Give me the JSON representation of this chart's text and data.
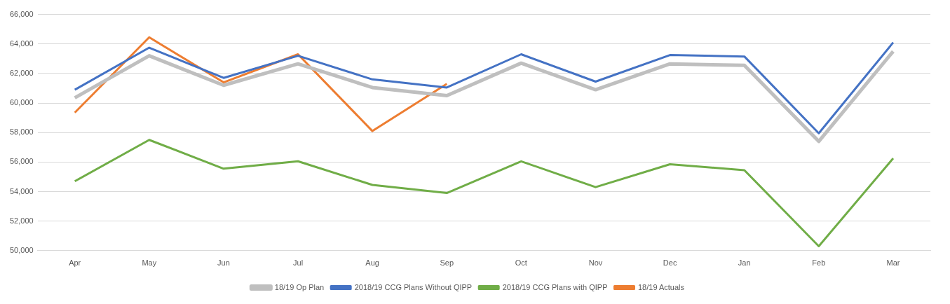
{
  "chart_data": {
    "type": "line",
    "categories": [
      "Apr",
      "May",
      "Jun",
      "Jul",
      "Aug",
      "Sep",
      "Oct",
      "Nov",
      "Dec",
      "Jan",
      "Feb",
      "Mar"
    ],
    "series": [
      {
        "name": "18/19 Op Plan",
        "color": "#bfbfbf",
        "values": [
          60350,
          63200,
          61200,
          62650,
          61050,
          60500,
          62700,
          60900,
          62650,
          62550,
          57400,
          63500
        ]
      },
      {
        "name": "2018/19 CCG Plans Without QIPP",
        "color": "#4472c4",
        "values": [
          60900,
          63750,
          61700,
          63200,
          61600,
          61050,
          63300,
          61450,
          63250,
          63150,
          57950,
          64100
        ]
      },
      {
        "name": "2018/19 CCG Plans with QIPP",
        "color": "#70ad47",
        "values": [
          54700,
          57500,
          55550,
          56050,
          54450,
          53900,
          56050,
          54300,
          55850,
          55450,
          50300,
          56250
        ]
      },
      {
        "name": "18/19 Actuals",
        "color": "#ed7d31",
        "values": [
          59350,
          64450,
          61400,
          63300,
          58100,
          61300,
          null,
          null,
          null,
          null,
          null,
          null
        ]
      }
    ],
    "ylim": [
      50000,
      66000
    ],
    "yticks": [
      {
        "value": 50000,
        "label": "50,000"
      },
      {
        "value": 52000,
        "label": "52,000"
      },
      {
        "value": 54000,
        "label": "54,000"
      },
      {
        "value": 56000,
        "label": "56,000"
      },
      {
        "value": 58000,
        "label": "58,000"
      },
      {
        "value": 60000,
        "label": "60,000"
      },
      {
        "value": 62000,
        "label": "62,000"
      },
      {
        "value": 64000,
        "label": "64,000"
      },
      {
        "value": 66000,
        "label": "66,000"
      }
    ],
    "grid": "y",
    "legend": "bottom",
    "marker": "none",
    "line_style": "solid"
  }
}
